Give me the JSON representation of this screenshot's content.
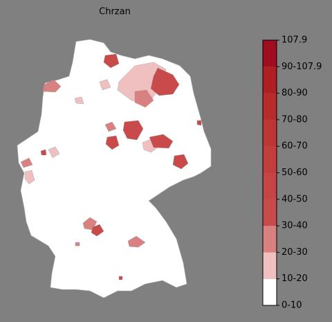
{
  "title": "Chrzan",
  "colorbar": {
    "ticks": [
      "0-10",
      "10-20",
      "20-30",
      "30-40",
      "40-50",
      "50-60",
      "60-70",
      "70-80",
      "80-90",
      "90-107.9",
      107.9
    ],
    "colors": [
      "#ffffff",
      "#f0c0c0",
      "#d98080",
      "#c94a4a",
      "#c64444",
      "#c33d3d",
      "#bf3535",
      "#b92b2b",
      "#b01f24",
      "#a00d20"
    ]
  }
}
